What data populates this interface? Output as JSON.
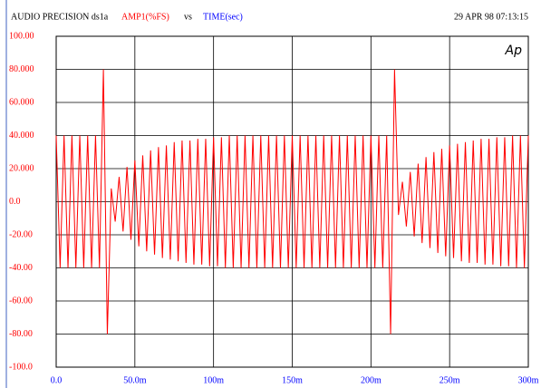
{
  "chart_data": {
    "type": "line",
    "title": "AUDIO PRECISION ds1a",
    "y_label": "AMP1(%FS)",
    "connector": "vs",
    "x_label": "TIME(sec)",
    "timestamp": "29 APR 98 07:13:15",
    "logo": "Ap",
    "color": "#ff0000",
    "grid": true,
    "xlim": [
      0,
      0.3
    ],
    "ylim": [
      -100,
      100
    ],
    "xticks": [
      {
        "value": 0,
        "label": "0.0"
      },
      {
        "value": 0.05,
        "label": "50.0m"
      },
      {
        "value": 0.1,
        "label": "100m"
      },
      {
        "value": 0.15,
        "label": "150m"
      },
      {
        "value": 0.2,
        "label": "200m"
      },
      {
        "value": 0.25,
        "label": "250m"
      },
      {
        "value": 0.3,
        "label": "300m"
      }
    ],
    "yticks": [
      {
        "value": 100,
        "label": "100.00"
      },
      {
        "value": 80,
        "label": "80.000"
      },
      {
        "value": 60,
        "label": "60.000"
      },
      {
        "value": 40,
        "label": "40.000"
      },
      {
        "value": 20,
        "label": "20.000"
      },
      {
        "value": 0,
        "label": "0.0"
      },
      {
        "value": -20,
        "label": "-20.00"
      },
      {
        "value": -40,
        "label": "-40.00"
      },
      {
        "value": -60,
        "label": "-60.00"
      },
      {
        "value": -80,
        "label": "-80.00"
      },
      {
        "value": -100,
        "label": "-100.0"
      }
    ],
    "x": [
      0,
      0.0025,
      0.005,
      0.0075,
      0.01,
      0.0125,
      0.015,
      0.0175,
      0.02,
      0.0225,
      0.025,
      0.0275,
      0.03,
      0.0325,
      0.035,
      0.0375,
      0.04,
      0.0425,
      0.045,
      0.0475,
      0.05,
      0.0525,
      0.055,
      0.0575,
      0.06,
      0.0625,
      0.065,
      0.0675,
      0.07,
      0.0725,
      0.075,
      0.0775,
      0.08,
      0.0825,
      0.085,
      0.0875,
      0.09,
      0.0925,
      0.095,
      0.0975,
      0.1,
      0.1025,
      0.105,
      0.1075,
      0.11,
      0.1125,
      0.115,
      0.1175,
      0.12,
      0.1225,
      0.125,
      0.1275,
      0.13,
      0.1325,
      0.135,
      0.1375,
      0.14,
      0.1425,
      0.145,
      0.1475,
      0.15,
      0.1525,
      0.155,
      0.1575,
      0.16,
      0.1625,
      0.165,
      0.1675,
      0.17,
      0.1725,
      0.175,
      0.1775,
      0.18,
      0.1825,
      0.185,
      0.1875,
      0.19,
      0.1925,
      0.195,
      0.1975,
      0.2,
      0.2025,
      0.205,
      0.2075,
      0.21,
      0.2125,
      0.215,
      0.2175,
      0.22,
      0.2225,
      0.225,
      0.2275,
      0.23,
      0.2325,
      0.235,
      0.2375,
      0.24,
      0.2425,
      0.245,
      0.2475,
      0.25,
      0.2525,
      0.255,
      0.2575,
      0.26,
      0.2625,
      0.265,
      0.2675,
      0.27,
      0.2725,
      0.275,
      0.2775,
      0.28,
      0.2825,
      0.285,
      0.2875,
      0.29,
      0.2925,
      0.295,
      0.2975,
      0.3
    ],
    "values": [
      40,
      -40,
      40,
      -40,
      40,
      -40,
      40,
      -40,
      40,
      -40,
      40,
      -40,
      80,
      -80,
      8,
      -12,
      15,
      -18,
      21,
      -23,
      25,
      -27,
      28,
      -30,
      31,
      -32,
      33,
      -34,
      34,
      -35,
      36,
      -36,
      37,
      -37,
      37,
      -38,
      38,
      -38,
      38,
      -39,
      39,
      -39,
      39,
      -40,
      40,
      -40,
      40,
      -40,
      40,
      -40,
      40,
      -40,
      40,
      -40,
      40,
      -40,
      40,
      -40,
      40,
      -40,
      40,
      -40,
      40,
      -40,
      40,
      -40,
      40,
      -40,
      40,
      -40,
      40,
      -40,
      40,
      -40,
      40,
      -40,
      40,
      -40,
      40,
      -40,
      40,
      -40,
      40,
      -40,
      40,
      -80,
      80,
      -8,
      12,
      -15,
      18,
      -21,
      23,
      -25,
      27,
      -28,
      30,
      -31,
      32,
      -33,
      34,
      -34,
      35,
      -36,
      36,
      -37,
      37,
      -37,
      38,
      -38,
      38,
      -38,
      39,
      -39,
      39,
      -39,
      40,
      -40,
      40,
      -40,
      40
    ]
  }
}
